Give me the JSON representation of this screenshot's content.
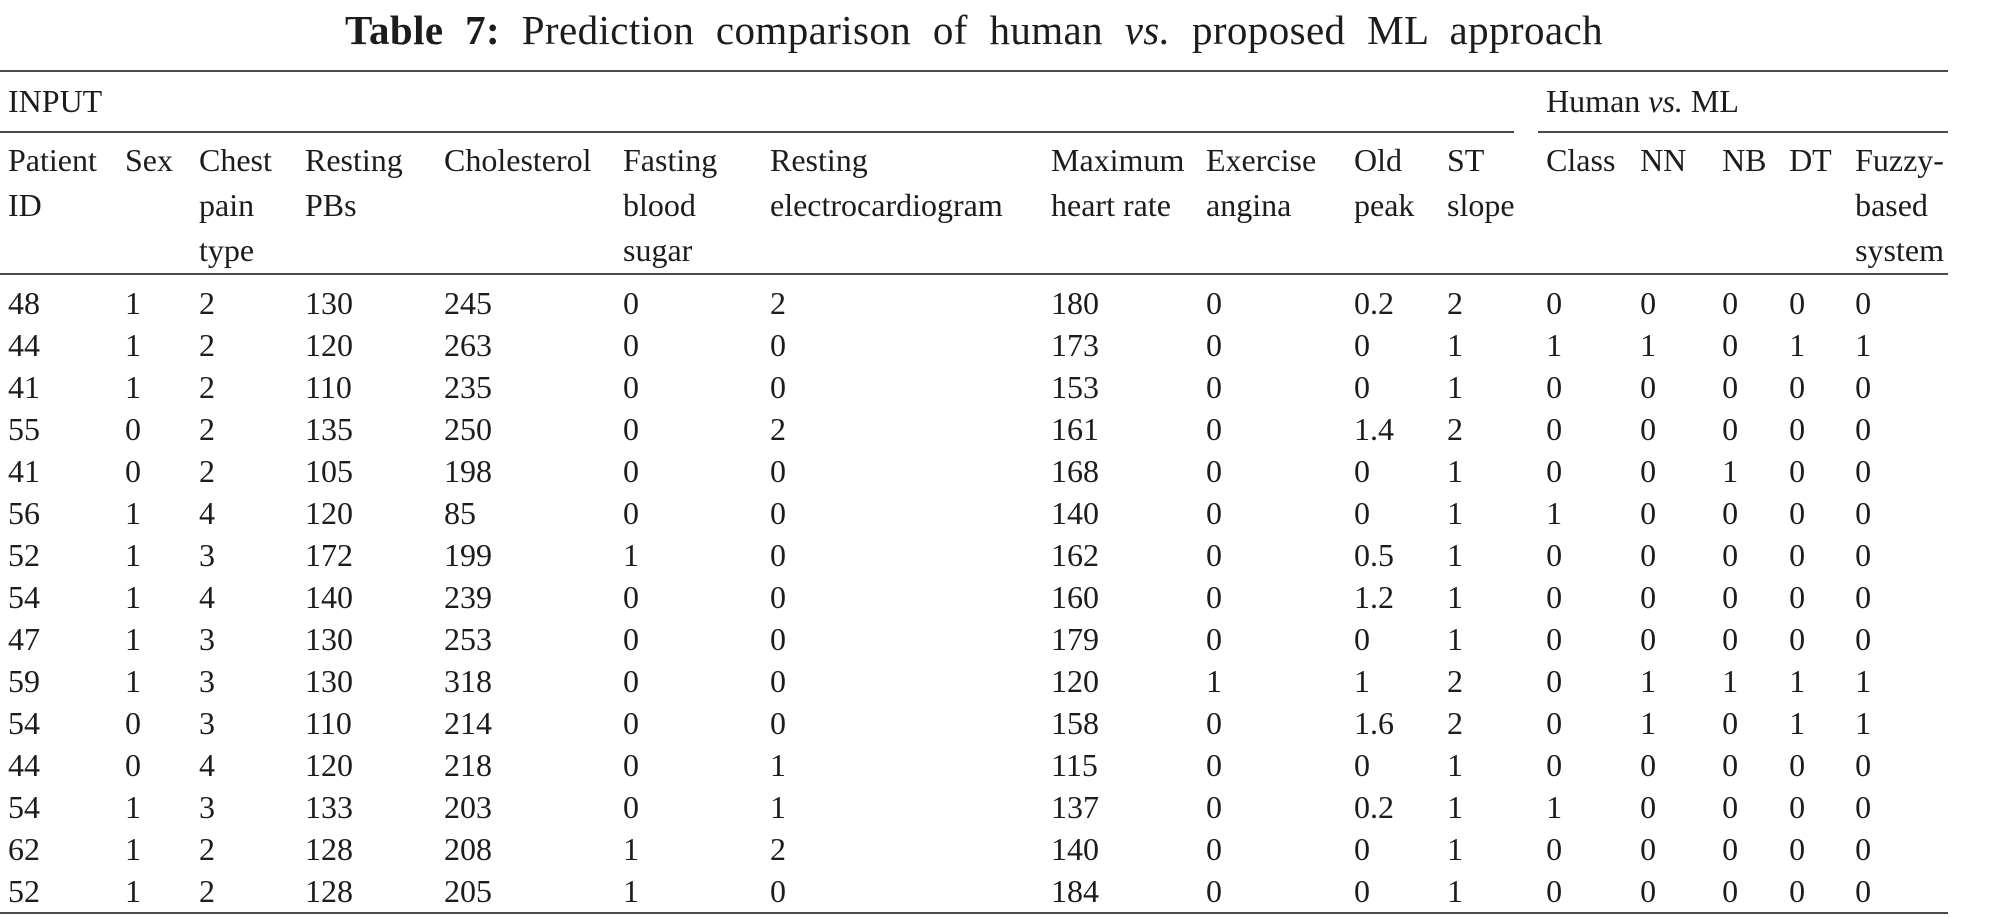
{
  "page": {
    "title": {
      "prefix": "Table 7:",
      "middle": " Prediction comparison of human ",
      "vs": "vs.",
      "suffix": " proposed ML approach"
    }
  },
  "table": {
    "groups": {
      "input": "INPUT",
      "human_ml": {
        "prefix": "Human ",
        "vs": "vs.",
        "suffix": " ML"
      }
    },
    "columns": [
      "Patient\nID",
      "Sex",
      "Chest\npain\ntype",
      "Resting\nPBs",
      "Cholesterol",
      "Fasting\nblood\nsugar",
      "Resting\nelectrocardiogram",
      "Maximum\nheart rate",
      "Exercise\nangina",
      "Old\npeak",
      "ST\nslope",
      "Class",
      "NN",
      "NB",
      "DT",
      "Fuzzy-\nbased\nsystem"
    ],
    "rows": [
      [
        "48",
        "1",
        "2",
        "130",
        "245",
        "0",
        "2",
        "180",
        "0",
        "0.2",
        "2",
        "0",
        "0",
        "0",
        "0",
        "0"
      ],
      [
        "44",
        "1",
        "2",
        "120",
        "263",
        "0",
        "0",
        "173",
        "0",
        "0",
        "1",
        "1",
        "1",
        "0",
        "1",
        "1"
      ],
      [
        "41",
        "1",
        "2",
        "110",
        "235",
        "0",
        "0",
        "153",
        "0",
        "0",
        "1",
        "0",
        "0",
        "0",
        "0",
        "0"
      ],
      [
        "55",
        "0",
        "2",
        "135",
        "250",
        "0",
        "2",
        "161",
        "0",
        "1.4",
        "2",
        "0",
        "0",
        "0",
        "0",
        "0"
      ],
      [
        "41",
        "0",
        "2",
        "105",
        "198",
        "0",
        "0",
        "168",
        "0",
        "0",
        "1",
        "0",
        "0",
        "1",
        "0",
        "0"
      ],
      [
        "56",
        "1",
        "4",
        "120",
        "85",
        "0",
        "0",
        "140",
        "0",
        "0",
        "1",
        "1",
        "0",
        "0",
        "0",
        "0"
      ],
      [
        "52",
        "1",
        "3",
        "172",
        "199",
        "1",
        "0",
        "162",
        "0",
        "0.5",
        "1",
        "0",
        "0",
        "0",
        "0",
        "0"
      ],
      [
        "54",
        "1",
        "4",
        "140",
        "239",
        "0",
        "0",
        "160",
        "0",
        "1.2",
        "1",
        "0",
        "0",
        "0",
        "0",
        "0"
      ],
      [
        "47",
        "1",
        "3",
        "130",
        "253",
        "0",
        "0",
        "179",
        "0",
        "0",
        "1",
        "0",
        "0",
        "0",
        "0",
        "0"
      ],
      [
        "59",
        "1",
        "3",
        "130",
        "318",
        "0",
        "0",
        "120",
        "1",
        "1",
        "2",
        "0",
        "1",
        "1",
        "1",
        "1"
      ],
      [
        "54",
        "0",
        "3",
        "110",
        "214",
        "0",
        "0",
        "158",
        "0",
        "1.6",
        "2",
        "0",
        "1",
        "0",
        "1",
        "1"
      ],
      [
        "44",
        "0",
        "4",
        "120",
        "218",
        "0",
        "1",
        "115",
        "0",
        "0",
        "1",
        "0",
        "0",
        "0",
        "0",
        "0"
      ],
      [
        "54",
        "1",
        "3",
        "133",
        "203",
        "0",
        "1",
        "137",
        "0",
        "0.2",
        "1",
        "1",
        "0",
        "0",
        "0",
        "0"
      ],
      [
        "62",
        "1",
        "2",
        "128",
        "208",
        "1",
        "2",
        "140",
        "0",
        "0",
        "1",
        "0",
        "0",
        "0",
        "0",
        "0"
      ],
      [
        "52",
        "1",
        "2",
        "128",
        "205",
        "1",
        "0",
        "184",
        "0",
        "0",
        "1",
        "0",
        "0",
        "0",
        "0",
        "0"
      ]
    ]
  }
}
